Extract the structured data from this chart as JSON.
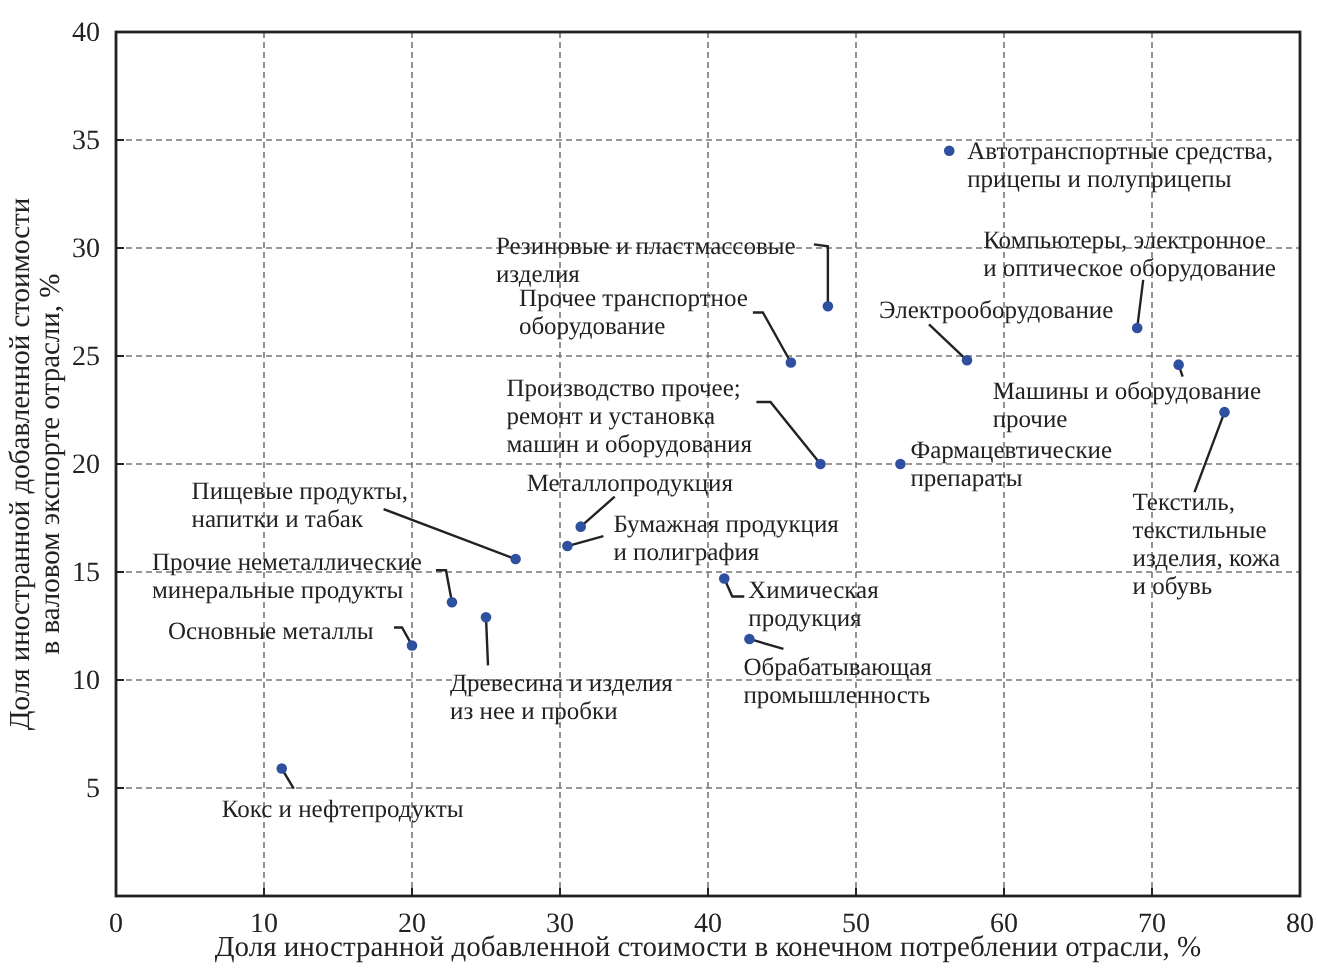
{
  "chart_data": {
    "type": "scatter",
    "xlabel": "Доля иностранной добавленной стоимости в конечном потреблении отрасли, %",
    "ylabel": "Доля иностранной добавленной стоимости\nв валовом экспорте отрасли, %",
    "xlim": [
      0,
      80
    ],
    "xticks": [
      0,
      10,
      20,
      30,
      40,
      50,
      60,
      70,
      80
    ],
    "ylim": [
      0,
      40
    ],
    "yticks": [
      5,
      10,
      15,
      20,
      25,
      30,
      35,
      40
    ],
    "grid": true,
    "marker": "circle",
    "series": [
      {
        "color": "#2f4f9f",
        "x": [
          56.3,
          48.1,
          45.6,
          57.5,
          69.0,
          71.8,
          74.9,
          47.6,
          53.0,
          27.0,
          31.4,
          30.5,
          22.7,
          25.0,
          20.0,
          11.2,
          41.1,
          42.8
        ],
        "values": [
          34.5,
          27.3,
          24.7,
          24.8,
          26.3,
          24.6,
          22.4,
          20.0,
          20.0,
          15.6,
          17.1,
          16.2,
          13.6,
          12.9,
          11.6,
          5.9,
          14.7,
          11.9
        ]
      }
    ],
    "annotations": [
      {
        "text": "Автотранспортные средства,\nприцепы и полуприцепы",
        "x": 56.3,
        "y": 34.5
      },
      {
        "text": "Резиновые и пластмассовые\nизделия",
        "x": 48.1,
        "y": 27.3
      },
      {
        "text": "Прочее транспортное\nоборудование",
        "x": 45.6,
        "y": 24.7
      },
      {
        "text": "Электрооборудование",
        "x": 57.5,
        "y": 24.8
      },
      {
        "text": "Компьютеры, электронное\nи оптическое оборудование",
        "x": 69.0,
        "y": 26.3
      },
      {
        "text": "Машины и оборудование\nпрочие",
        "x": 71.8,
        "y": 24.6
      },
      {
        "text": "Текстиль,\nтекстильные\nизделия, кожа\nи обувь",
        "x": 74.9,
        "y": 22.4
      },
      {
        "text": "Производство прочее;\nремонт и установка\nмашин и оборудования",
        "x": 47.6,
        "y": 20.0
      },
      {
        "text": "Фармацевтические\nпрепараты",
        "x": 53.0,
        "y": 20.0
      },
      {
        "text": "Пищевые продукты,\nнапитки и табак",
        "x": 27.0,
        "y": 15.6
      },
      {
        "text": "Металлопродукция",
        "x": 31.4,
        "y": 17.1
      },
      {
        "text": "Бумажная продукция\nи полиграфия",
        "x": 30.5,
        "y": 16.2
      },
      {
        "text": "Прочие неметаллические\nминеральные продукты",
        "x": 22.7,
        "y": 13.6
      },
      {
        "text": "Древесина и изделия\nиз нее и пробки",
        "x": 25.0,
        "y": 12.9
      },
      {
        "text": "Основные металлы",
        "x": 20.0,
        "y": 11.6
      },
      {
        "text": "Кокс и нефтепродукты",
        "x": 11.2,
        "y": 5.9
      },
      {
        "text": "Химическая\nпродукция",
        "x": 41.1,
        "y": 14.7
      },
      {
        "text": "Обрабатывающая\nпромышленность",
        "x": 42.8,
        "y": 11.9
      }
    ]
  }
}
